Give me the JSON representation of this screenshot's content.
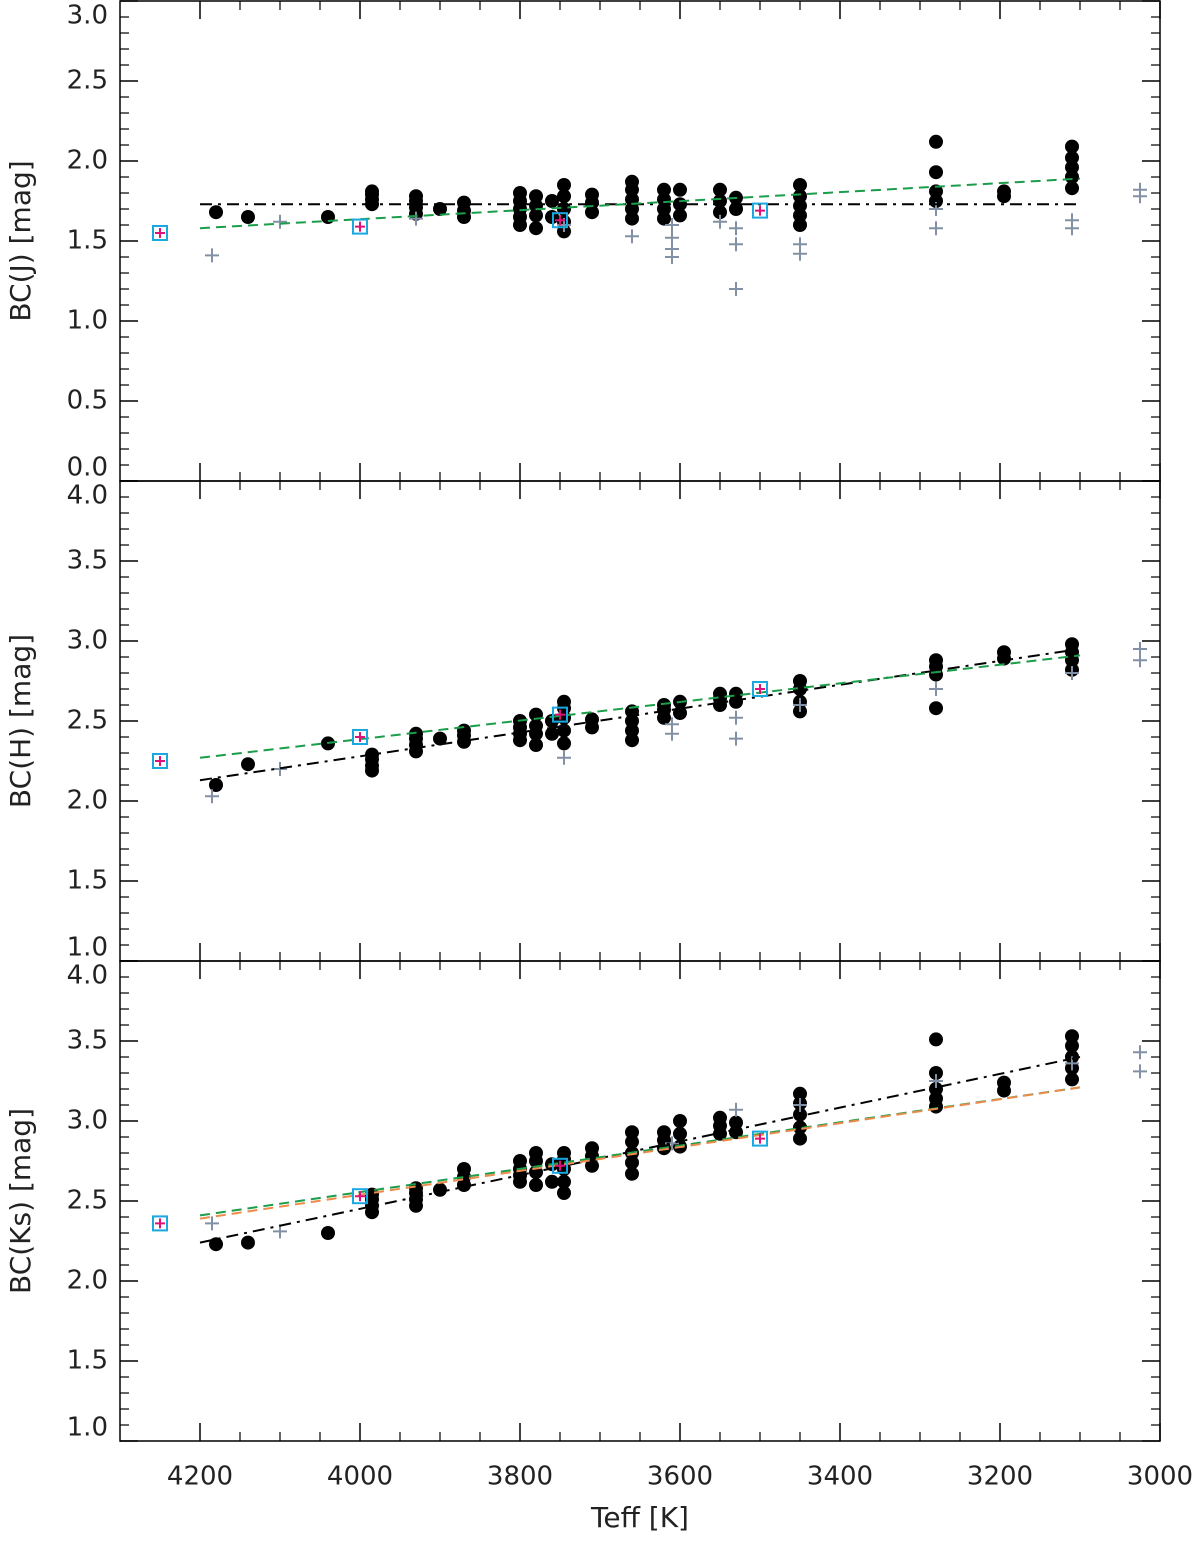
{
  "chart_data": [
    {
      "type": "scatter",
      "ylabel": "BC(J) [mag]",
      "xlim": [
        4300,
        3000
      ],
      "ylim": [
        0,
        3
      ],
      "yticks": [
        {
          "value": 0,
          "label": "0.0"
        },
        0.5,
        {
          "value": 1,
          "label": "1.0"
        },
        1.5,
        {
          "value": 2,
          "label": "2.0"
        },
        2.5,
        {
          "value": 3,
          "label": "3.0"
        }
      ],
      "series": [
        {
          "marker": "circle",
          "color": "#000000",
          "x": [
            4180,
            4140,
            4040,
            3985,
            3985,
            3985,
            3985,
            3930,
            3930,
            3930,
            3930,
            3900,
            3870,
            3870,
            3870,
            3800,
            3800,
            3800,
            3800,
            3800,
            3780,
            3780,
            3780,
            3780,
            3760,
            3760,
            3745,
            3745,
            3745,
            3745,
            3745,
            3710,
            3710,
            3710,
            3660,
            3660,
            3660,
            3660,
            3660,
            3620,
            3620,
            3620,
            3620,
            3600,
            3600,
            3600,
            3550,
            3550,
            3550,
            3530,
            3530,
            3450,
            3450,
            3450,
            3450,
            3450,
            3280,
            3280,
            3280,
            3280,
            3195,
            3195,
            3110,
            3110,
            3110,
            3110,
            3110
          ],
          "y": [
            1.68,
            1.65,
            1.65,
            1.73,
            1.76,
            1.79,
            1.81,
            1.67,
            1.71,
            1.75,
            1.78,
            1.7,
            1.65,
            1.69,
            1.74,
            1.6,
            1.65,
            1.7,
            1.75,
            1.8,
            1.58,
            1.66,
            1.72,
            1.78,
            1.65,
            1.75,
            1.56,
            1.62,
            1.7,
            1.78,
            1.85,
            1.68,
            1.74,
            1.79,
            1.64,
            1.7,
            1.76,
            1.82,
            1.87,
            1.64,
            1.7,
            1.76,
            1.82,
            1.66,
            1.73,
            1.82,
            1.68,
            1.75,
            1.82,
            1.7,
            1.77,
            1.6,
            1.66,
            1.72,
            1.78,
            1.85,
            1.75,
            1.81,
            1.93,
            2.12,
            1.78,
            1.81,
            1.83,
            1.9,
            1.96,
            2.02,
            2.09
          ]
        },
        {
          "marker": "plus",
          "color": "#8290a6",
          "x": [
            4185,
            4100,
            3930,
            3745,
            3660,
            3610,
            3610,
            3610,
            3610,
            3550,
            3530,
            3530,
            3530,
            3450,
            3450,
            3280,
            3280,
            3110,
            3110,
            3025,
            3025
          ],
          "y": [
            1.41,
            1.62,
            1.64,
            1.6,
            1.53,
            1.4,
            1.45,
            1.52,
            1.6,
            1.62,
            1.2,
            1.48,
            1.58,
            1.42,
            1.48,
            1.58,
            1.7,
            1.58,
            1.63,
            1.78,
            1.82
          ]
        },
        {
          "marker": "dashdot",
          "color": "#000000",
          "x": [
            4200,
            3100
          ],
          "y": [
            1.73,
            1.73
          ]
        },
        {
          "marker": "dashed",
          "color": "#1a9e4a",
          "x": [
            4200,
            3100
          ],
          "y": [
            1.58,
            1.89
          ]
        },
        {
          "marker": "square",
          "color": "#1aa8e0",
          "inner_color": "#e0107a",
          "x": [
            4250,
            4000,
            3750,
            3500
          ],
          "y": [
            1.55,
            1.59,
            1.63,
            1.69
          ]
        }
      ]
    },
    {
      "type": "scatter",
      "ylabel": "BC(H) [mag]",
      "xlim": [
        4300,
        3000
      ],
      "ylim": [
        1,
        4
      ],
      "yticks": [
        {
          "value": 1,
          "label": "1.0"
        },
        1.5,
        {
          "value": 2,
          "label": "2.0"
        },
        2.5,
        {
          "value": 3,
          "label": "3.0"
        },
        3.5,
        {
          "value": 4,
          "label": "4.0"
        }
      ],
      "series": [
        {
          "marker": "circle",
          "color": "#000000",
          "x": [
            4180,
            4140,
            4040,
            3985,
            3985,
            3985,
            3985,
            3930,
            3930,
            3930,
            3930,
            3900,
            3870,
            3870,
            3870,
            3800,
            3800,
            3800,
            3800,
            3780,
            3780,
            3780,
            3780,
            3760,
            3760,
            3745,
            3745,
            3745,
            3745,
            3745,
            3710,
            3710,
            3660,
            3660,
            3660,
            3660,
            3620,
            3620,
            3620,
            3600,
            3600,
            3550,
            3550,
            3550,
            3530,
            3530,
            3450,
            3450,
            3450,
            3450,
            3280,
            3280,
            3280,
            3280,
            3195,
            3195,
            3110,
            3110,
            3110,
            3110
          ],
          "y": [
            2.1,
            2.23,
            2.36,
            2.19,
            2.22,
            2.26,
            2.29,
            2.31,
            2.35,
            2.39,
            2.42,
            2.39,
            2.37,
            2.41,
            2.44,
            2.38,
            2.42,
            2.46,
            2.5,
            2.35,
            2.42,
            2.47,
            2.54,
            2.42,
            2.5,
            2.36,
            2.44,
            2.52,
            2.58,
            2.62,
            2.46,
            2.51,
            2.38,
            2.44,
            2.5,
            2.56,
            2.52,
            2.57,
            2.6,
            2.55,
            2.62,
            2.6,
            2.64,
            2.67,
            2.62,
            2.67,
            2.56,
            2.62,
            2.7,
            2.75,
            2.58,
            2.79,
            2.84,
            2.88,
            2.89,
            2.93,
            2.82,
            2.88,
            2.93,
            2.98
          ]
        },
        {
          "marker": "plus",
          "color": "#8290a6",
          "x": [
            4185,
            4100,
            3745,
            3610,
            3610,
            3530,
            3530,
            3450,
            3280,
            3110,
            3025,
            3025
          ],
          "y": [
            2.03,
            2.2,
            2.27,
            2.42,
            2.48,
            2.39,
            2.52,
            2.6,
            2.7,
            2.8,
            2.88,
            2.95
          ]
        },
        {
          "marker": "dashdot",
          "color": "#000000",
          "x": [
            4200,
            3100
          ],
          "y": [
            2.13,
            2.95
          ]
        },
        {
          "marker": "dashed",
          "color": "#1a9e4a",
          "x": [
            4200,
            3100
          ],
          "y": [
            2.27,
            2.91
          ]
        },
        {
          "marker": "square",
          "color": "#1aa8e0",
          "inner_color": "#e0107a",
          "x": [
            4250,
            4000,
            3750,
            3500
          ],
          "y": [
            2.25,
            2.4,
            2.54,
            2.7
          ]
        }
      ]
    },
    {
      "type": "scatter",
      "ylabel": "BC(Ks) [mag]",
      "xlabel": "Teff [K]",
      "xlim": [
        4300,
        3000
      ],
      "ylim": [
        1,
        4
      ],
      "xticks": [
        4200,
        4000,
        3800,
        3600,
        3400,
        3200,
        3000
      ],
      "yticks": [
        {
          "value": 1,
          "label": "1.0"
        },
        1.5,
        {
          "value": 2,
          "label": "2.0"
        },
        2.5,
        {
          "value": 3,
          "label": "3.0"
        },
        3.5,
        {
          "value": 4,
          "label": "4.0"
        }
      ],
      "series": [
        {
          "marker": "circle",
          "color": "#000000",
          "x": [
            4180,
            4140,
            4040,
            3985,
            3985,
            3985,
            3985,
            3930,
            3930,
            3930,
            3930,
            3900,
            3870,
            3870,
            3870,
            3800,
            3800,
            3800,
            3800,
            3780,
            3780,
            3780,
            3780,
            3760,
            3760,
            3745,
            3745,
            3745,
            3745,
            3745,
            3710,
            3710,
            3710,
            3660,
            3660,
            3660,
            3660,
            3660,
            3620,
            3620,
            3620,
            3600,
            3600,
            3600,
            3550,
            3550,
            3550,
            3530,
            3530,
            3450,
            3450,
            3450,
            3450,
            3450,
            3280,
            3280,
            3280,
            3280,
            3280,
            3195,
            3195,
            3110,
            3110,
            3110,
            3110,
            3110
          ],
          "y": [
            2.23,
            2.24,
            2.3,
            2.43,
            2.47,
            2.51,
            2.54,
            2.47,
            2.51,
            2.55,
            2.58,
            2.57,
            2.6,
            2.65,
            2.7,
            2.62,
            2.66,
            2.7,
            2.75,
            2.6,
            2.68,
            2.75,
            2.8,
            2.62,
            2.73,
            2.55,
            2.62,
            2.7,
            2.76,
            2.8,
            2.72,
            2.78,
            2.83,
            2.67,
            2.74,
            2.8,
            2.87,
            2.93,
            2.83,
            2.88,
            2.93,
            2.84,
            2.92,
            3.0,
            2.92,
            2.97,
            3.02,
            2.93,
            2.99,
            2.89,
            2.96,
            3.04,
            3.11,
            3.17,
            3.09,
            3.14,
            3.2,
            3.3,
            3.51,
            3.19,
            3.24,
            3.26,
            3.33,
            3.4,
            3.47,
            3.53
          ]
        },
        {
          "marker": "plus",
          "color": "#8290a6",
          "x": [
            4185,
            4100,
            3610,
            3530,
            3450,
            3280,
            3110,
            3025,
            3025
          ],
          "y": [
            2.36,
            2.31,
            2.86,
            3.07,
            3.1,
            3.25,
            3.36,
            3.31,
            3.43
          ]
        },
        {
          "marker": "dashdot",
          "color": "#000000",
          "x": [
            4200,
            3100
          ],
          "y": [
            2.24,
            3.4
          ]
        },
        {
          "marker": "dashed",
          "color": "#1a9e4a",
          "x": [
            4200,
            3100
          ],
          "y": [
            2.41,
            3.21
          ]
        },
        {
          "marker": "dashed",
          "color": "#f08a4a",
          "x": [
            4200,
            3100
          ],
          "y": [
            2.39,
            3.21
          ]
        },
        {
          "marker": "square",
          "color": "#1aa8e0",
          "inner_color": "#e0107a",
          "x": [
            4250,
            4000,
            3750,
            3500
          ],
          "y": [
            2.36,
            2.53,
            2.72,
            2.89
          ]
        }
      ]
    }
  ]
}
